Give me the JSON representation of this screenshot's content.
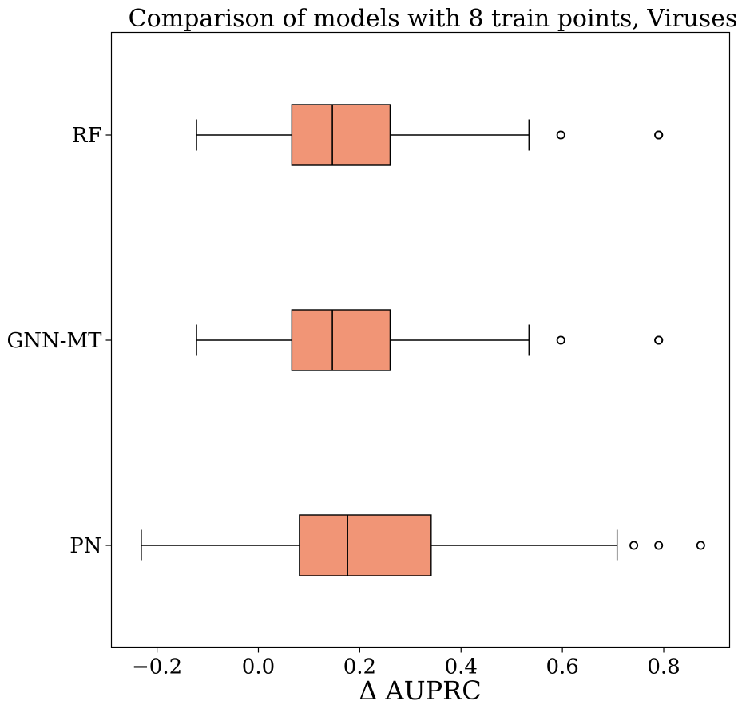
{
  "chart_data": {
    "type": "boxplot",
    "orientation": "horizontal",
    "title": "Comparison of models with 8 train points, Viruses",
    "xlabel": "Δ AUPRC",
    "ylabel": "",
    "xlim": [
      -0.29,
      0.93
    ],
    "xticks": [
      -0.2,
      0.0,
      0.2,
      0.4,
      0.6,
      0.8
    ],
    "xtick_labels": [
      "−0.2",
      "0.0",
      "0.2",
      "0.4",
      "0.6",
      "0.8"
    ],
    "grid": false,
    "legend": "none",
    "box_color": "#f19576",
    "edge_color": "#000000",
    "categories": [
      "RF",
      "GNN-MT",
      "PN"
    ],
    "series": [
      {
        "label": "RF",
        "whisker_low": -0.122,
        "q1": 0.066,
        "median": 0.146,
        "q3": 0.26,
        "whisker_high": 0.534,
        "outliers": [
          0.597,
          0.79,
          0.79
        ]
      },
      {
        "label": "GNN-MT",
        "whisker_low": -0.122,
        "q1": 0.066,
        "median": 0.146,
        "q3": 0.26,
        "whisker_high": 0.534,
        "outliers": [
          0.597,
          0.79,
          0.79
        ]
      },
      {
        "label": "PN",
        "whisker_low": -0.231,
        "q1": 0.081,
        "median": 0.176,
        "q3": 0.341,
        "whisker_high": 0.708,
        "outliers": [
          0.741,
          0.79,
          0.873
        ]
      }
    ]
  }
}
